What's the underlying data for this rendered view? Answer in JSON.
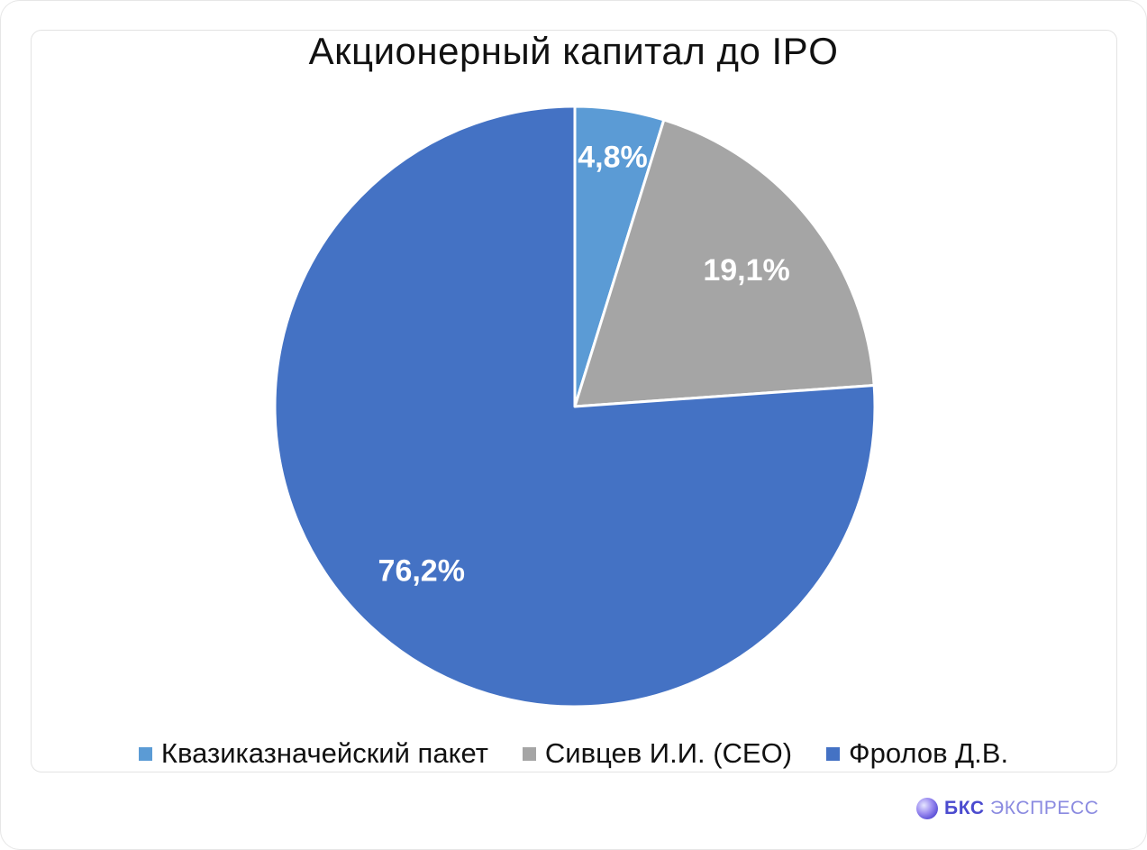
{
  "chart_data": {
    "type": "pie",
    "title": "Акционерный капитал до IPO",
    "slices": [
      {
        "name": "Квазиказначейский пакет",
        "value": 4.8,
        "label": "4,8%",
        "color": "#5b9bd5"
      },
      {
        "name": "Сивцев И.И. (CEO)",
        "value": 19.1,
        "label": "19,1%",
        "color": "#a5a5a5"
      },
      {
        "name": "Фролов Д.В.",
        "value": 76.2,
        "label": "76,2%",
        "color": "#4472c4"
      }
    ],
    "legend_position": "bottom",
    "start_angle": "12 o'clock",
    "direction": "clockwise"
  },
  "brand": {
    "part1": "БКС",
    "part2": "ЭКСПРЕСС"
  }
}
